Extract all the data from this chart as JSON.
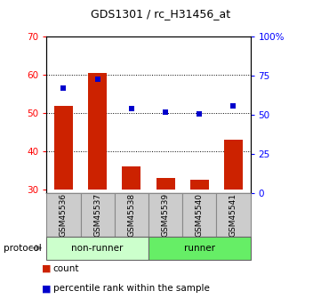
{
  "title": "GDS1301 / rc_H31456_at",
  "categories": [
    "GSM45536",
    "GSM45537",
    "GSM45538",
    "GSM45539",
    "GSM45540",
    "GSM45541"
  ],
  "bar_values": [
    52,
    60.5,
    36,
    33,
    32.5,
    43
  ],
  "scatter_values_pct": [
    67,
    73,
    54,
    52,
    51,
    56
  ],
  "ylim_left": [
    29,
    70
  ],
  "ylim_right": [
    0,
    100
  ],
  "yticks_left": [
    30,
    40,
    50,
    60,
    70
  ],
  "yticks_right": [
    0,
    25,
    50,
    75,
    100
  ],
  "ytick_labels_right": [
    "0",
    "25",
    "50",
    "75",
    "100%"
  ],
  "bar_color": "#cc2200",
  "scatter_color": "#0000cc",
  "bar_bottom": 30,
  "groups": [
    {
      "label": "non-runner",
      "start": 0,
      "end": 3,
      "color": "#ccffcc"
    },
    {
      "label": "runner",
      "start": 3,
      "end": 6,
      "color": "#66ee66"
    }
  ],
  "protocol_label": "protocol",
  "legend_items": [
    {
      "label": "count",
      "color": "#cc2200"
    },
    {
      "label": "percentile rank within the sample",
      "color": "#0000cc"
    }
  ],
  "bg_color": "#ffffff",
  "plot_bg": "#ffffff",
  "xlabel_area_color": "#cccccc",
  "grid_yticks": [
    40,
    50,
    60
  ]
}
